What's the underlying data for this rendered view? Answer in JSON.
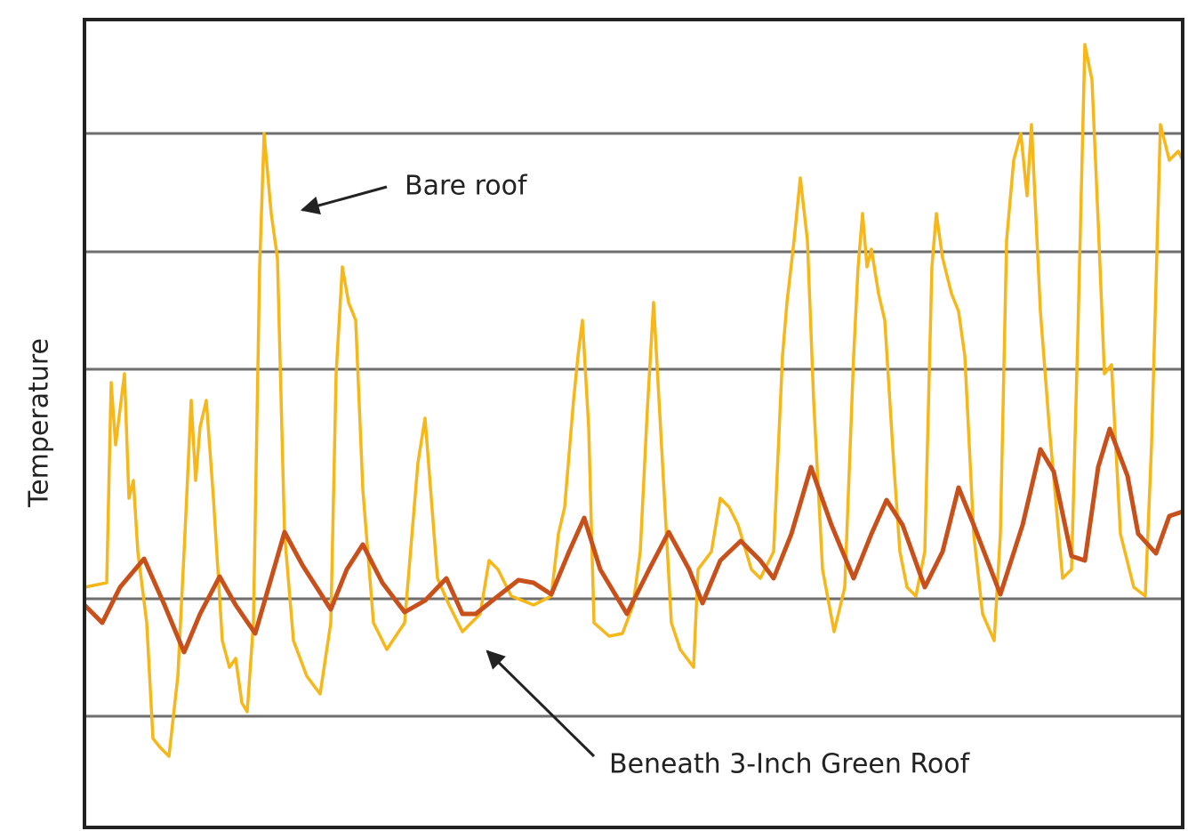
{
  "chart_data": {
    "type": "line",
    "y_label": "Temperature",
    "annotations": [
      "Bare roof",
      "Beneath 3-Inch Green Roof"
    ],
    "xlim": [
      95,
      1330
    ],
    "ylim": [
      0,
      908
    ],
    "yticks": [
      125,
      257,
      515,
      647,
      780
    ],
    "grid": true,
    "series": [
      {
        "color": "#f7b718",
        "x": [
          95,
          120,
          125,
          130,
          135,
          140,
          145,
          150,
          155,
          165,
          172,
          180,
          190,
          200,
          208,
          215,
          220,
          225,
          232,
          240,
          250,
          258,
          265,
          272,
          278,
          285,
          292,
          297,
          305,
          312,
          320,
          330,
          345,
          360,
          372,
          378,
          385,
          392,
          400,
          408,
          420,
          435,
          455,
          470,
          478,
          485,
          492,
          505,
          520,
          540,
          550,
          560,
          575,
          600,
          620,
          628,
          635,
          645,
          650,
          655,
          662,
          668,
          685,
          700,
          712,
          720,
          728,
          735,
          745,
          755,
          765,
          780,
          785,
          800,
          810,
          820,
          830,
          845,
          855,
          870,
          880,
          885,
          893,
          900,
          908,
          915,
          925,
          938,
          950,
          960,
          965,
          970,
          975,
          980,
          988,
          995,
          1005,
          1012,
          1020,
          1030,
          1040,
          1048,
          1053,
          1060,
          1070,
          1078,
          1085,
          1095,
          1105,
          1118,
          1125,
          1132,
          1140,
          1148,
          1155,
          1160,
          1170,
          1180,
          1195,
          1205,
          1212,
          1220,
          1228,
          1235,
          1242,
          1250,
          1260,
          1275,
          1288,
          1295,
          1305,
          1315,
          1325,
          1330
        ],
        "values": [
          270,
          275,
          500,
          430,
          470,
          510,
          370,
          390,
          310,
          230,
          100,
          90,
          80,
          170,
          330,
          480,
          390,
          450,
          480,
          370,
          210,
          180,
          190,
          140,
          130,
          230,
          630,
          780,
          690,
          640,
          330,
          210,
          170,
          150,
          230,
          510,
          630,
          590,
          570,
          380,
          230,
          200,
          230,
          410,
          460,
          370,
          280,
          250,
          220,
          240,
          300,
          290,
          260,
          250,
          260,
          330,
          360,
          480,
          530,
          570,
          450,
          230,
          215,
          218,
          250,
          310,
          470,
          590,
          410,
          230,
          200,
          180,
          290,
          310,
          370,
          360,
          340,
          290,
          280,
          310,
          530,
          590,
          660,
          730,
          660,
          480,
          290,
          220,
          270,
          530,
          630,
          690,
          630,
          650,
          600,
          570,
          410,
          310,
          270,
          260,
          310,
          630,
          690,
          640,
          600,
          580,
          530,
          330,
          240,
          210,
          330,
          660,
          750,
          780,
          710,
          790,
          580,
          450,
          280,
          290,
          550,
          880,
          840,
          680,
          510,
          520,
          330,
          270,
          260,
          430,
          790,
          750,
          760,
          750
        ]
      },
      {
        "color": "#c8501a",
        "x": [
          95,
          115,
          135,
          162,
          185,
          207,
          225,
          247,
          265,
          287,
          305,
          320,
          340,
          372,
          390,
          408,
          430,
          455,
          478,
          502,
          520,
          535,
          560,
          583,
          600,
          620,
          640,
          657,
          675,
          705,
          730,
          752,
          775,
          790,
          810,
          833,
          855,
          870,
          890,
          912,
          935,
          960,
          980,
          997,
          1015,
          1040,
          1060,
          1078,
          1095,
          1125,
          1150,
          1170,
          1185,
          1205,
          1220,
          1235,
          1248,
          1268,
          1280,
          1300,
          1315,
          1330
        ],
        "values": [
          250,
          230,
          270,
          302,
          250,
          197,
          240,
          282,
          250,
          218,
          280,
          332,
          295,
          245,
          290,
          318,
          275,
          242,
          255,
          280,
          240,
          240,
          260,
          278,
          275,
          262,
          310,
          348,
          290,
          240,
          290,
          332,
          290,
          252,
          300,
          322,
          300,
          280,
          330,
          405,
          340,
          280,
          330,
          368,
          340,
          270,
          310,
          382,
          340,
          262,
          340,
          425,
          400,
          305,
          300,
          405,
          448,
          395,
          330,
          308,
          350,
          355
        ]
      }
    ]
  }
}
